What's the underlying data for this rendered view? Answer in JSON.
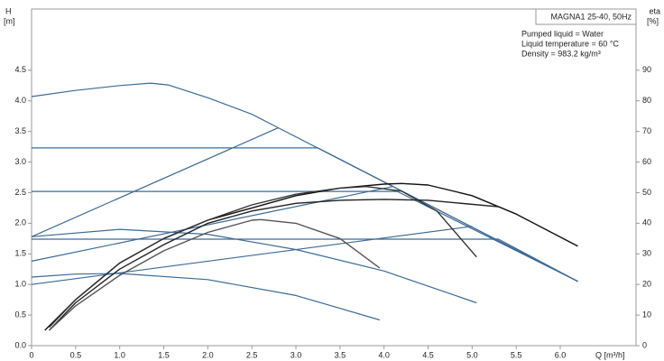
{
  "chart_data": {
    "type": "line",
    "model": "MAGNA1 25-40, 50Hz",
    "notes": [
      "Pumped liquid = Water",
      "Liquid temperature = 60 °C",
      "Density = 983.2 kg/m³"
    ],
    "y_label": [
      "H",
      "[m]"
    ],
    "y2_label": [
      "eta",
      "[%]"
    ],
    "x_label": "Q [m³/h]",
    "xlim": [
      0,
      6.86
    ],
    "ylim": [
      0,
      5.5
    ],
    "y2lim": [
      0,
      110
    ],
    "xticks": [
      0,
      0.5,
      {
        "value": 1,
        "label": "1.0"
      },
      1.5,
      {
        "value": 2,
        "label": "2.0"
      },
      2.5,
      {
        "value": 3,
        "label": "3.0"
      },
      3.5,
      {
        "value": 4,
        "label": "4.0"
      },
      4.5,
      {
        "value": 5,
        "label": "5.0"
      },
      5.5,
      {
        "value": 6,
        "label": "6.0"
      }
    ],
    "yticks": [
      {
        "value": 0,
        "label": "0.0"
      },
      0.5,
      {
        "value": 1,
        "label": "1.0"
      },
      1.5,
      {
        "value": 2,
        "label": "2.0"
      },
      2.5,
      {
        "value": 3,
        "label": "3.0"
      },
      3.5,
      {
        "value": 4,
        "label": "4.0"
      },
      4.5
    ],
    "y2ticks": [
      0,
      10,
      20,
      30,
      40,
      50,
      60,
      70,
      80,
      90
    ],
    "series": [
      {
        "color": "#3b6b98",
        "x": [
          0,
          0.5,
          1,
          1.35,
          1.55,
          2,
          2.5,
          2.8,
          6.2
        ],
        "values": [
          4.07,
          4.17,
          4.25,
          4.29,
          4.26,
          4.05,
          3.78,
          3.56,
          1.05
        ]
      },
      {
        "color": "#3b6b98",
        "x": [
          0,
          3.25,
          6.2
        ],
        "values": [
          3.23,
          3.23,
          1.05
        ]
      },
      {
        "color": "#3b6b98",
        "x": [
          0,
          4.15,
          6.2
        ],
        "values": [
          2.52,
          2.52,
          1.05
        ]
      },
      {
        "color": "#3b6b98",
        "x": [
          0,
          5.3,
          6.2
        ],
        "values": [
          1.74,
          1.74,
          1.05
        ]
      },
      {
        "color": "#3b6b98",
        "x": [
          0,
          2.8
        ],
        "values": [
          1.78,
          3.56
        ]
      },
      {
        "color": "#3b6b98",
        "x": [
          0,
          4.1
        ],
        "values": [
          1.38,
          2.6
        ]
      },
      {
        "color": "#3b6b98",
        "x": [
          0,
          5.0
        ],
        "values": [
          1.0,
          1.95
        ]
      },
      {
        "color": "#3b6b98",
        "x": [
          0,
          1,
          2,
          3,
          4,
          5.05
        ],
        "values": [
          1.78,
          1.9,
          1.82,
          1.57,
          1.22,
          0.7
        ]
      },
      {
        "color": "#3b6b98",
        "x": [
          0,
          0.5,
          1,
          2,
          3,
          3.95
        ],
        "values": [
          1.12,
          1.17,
          1.18,
          1.08,
          0.82,
          0.42
        ]
      },
      {
        "color": "#111111",
        "axis": "y2",
        "x": [
          0.15,
          0.5,
          1,
          1.5,
          2,
          2.5,
          3,
          3.5,
          4,
          4.2,
          4.5,
          5,
          5.5,
          6.2
        ],
        "values": [
          5,
          15,
          27,
          35,
          41,
          45,
          49,
          51.5,
          52.8,
          53,
          52.5,
          49,
          43,
          32.5
        ]
      },
      {
        "color": "#222222",
        "axis": "y2",
        "x": [
          0.2,
          0.5,
          1,
          1.5,
          2,
          2.5,
          3,
          3.5,
          4,
          4.5,
          5.3
        ],
        "values": [
          5,
          14,
          25,
          33,
          40,
          44,
          46.5,
          47.5,
          47.8,
          47.5,
          45.4
        ]
      },
      {
        "color": "#333333",
        "axis": "y2",
        "x": [
          0.2,
          0.5,
          1,
          1.5,
          2,
          2.5,
          3,
          3.5,
          3.8,
          4.2,
          4.6,
          5.05
        ],
        "values": [
          6,
          15,
          27,
          35,
          41,
          46,
          49.5,
          51.5,
          52,
          50.5,
          44,
          29
        ]
      },
      {
        "color": "#555555",
        "axis": "y2",
        "x": [
          0.2,
          0.5,
          1,
          1.5,
          2,
          2.5,
          2.6,
          3,
          3.5,
          3.95
        ],
        "values": [
          5,
          13,
          23,
          31,
          37,
          41,
          41.2,
          40,
          35,
          25.4
        ]
      }
    ]
  }
}
